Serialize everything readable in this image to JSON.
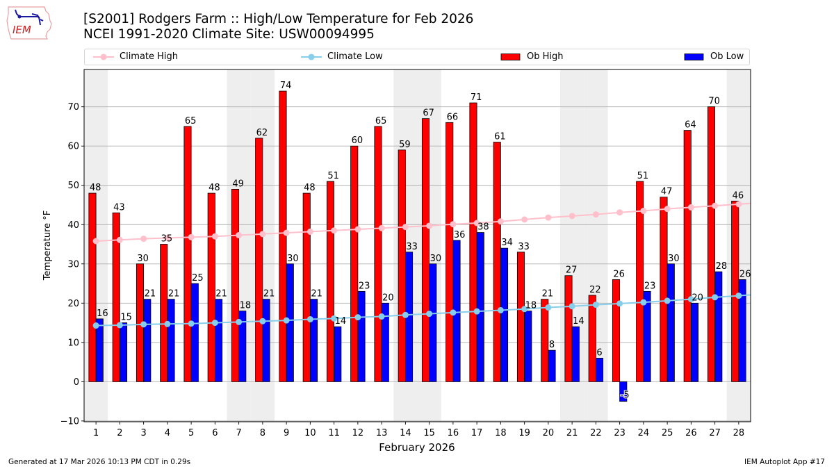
{
  "header": {
    "title_line1": "[S2001] Rodgers Farm :: High/Low Temperature for Feb 2026",
    "title_line2": "NCEI 1991-2020 Climate Site: USW00094995",
    "logo_text": "IEM"
  },
  "footer": {
    "generated": "Generated at 17 Mar 2026 10:13 PM CDT in 0.29s",
    "app": "IEM Autoplot App #17"
  },
  "colors": {
    "ob_high": "#ff0000",
    "ob_low": "#0000ff",
    "climate_high": "#ffc0cb",
    "climate_low": "#87ceeb",
    "weekend_shade": "#eeeeee",
    "grid": "#b0b0b0"
  },
  "chart_data": {
    "type": "bar",
    "title": "[S2001] Rodgers Farm :: High/Low Temperature for Feb 2026",
    "subtitle": "NCEI 1991-2020 Climate Site: USW00094995",
    "xlabel": "February 2026",
    "ylabel": "Temperature °F",
    "xlim": [
      0.5,
      28.5
    ],
    "ylim": [
      -10.2,
      79.5
    ],
    "yticks": [
      -10,
      0,
      10,
      20,
      30,
      40,
      50,
      60,
      70
    ],
    "grid": "y",
    "legend_placement": "top",
    "shaded_days": [
      1,
      7,
      8,
      14,
      15,
      21,
      22,
      28
    ],
    "x": [
      1,
      2,
      3,
      4,
      5,
      6,
      7,
      8,
      9,
      10,
      11,
      12,
      13,
      14,
      15,
      16,
      17,
      18,
      19,
      20,
      21,
      22,
      23,
      24,
      25,
      26,
      27,
      28
    ],
    "series": [
      {
        "name": "Climate High",
        "kind": "line",
        "values": [
          35.8,
          36.1,
          36.4,
          36.6,
          36.8,
          37.0,
          37.3,
          37.6,
          37.9,
          38.2,
          38.5,
          38.8,
          39.1,
          39.4,
          39.7,
          40.1,
          40.4,
          40.8,
          41.3,
          41.8,
          42.2,
          42.6,
          43.1,
          43.5,
          44.0,
          44.4,
          44.8,
          45.2
        ]
      },
      {
        "name": "Climate Low",
        "kind": "line",
        "values": [
          14.3,
          14.4,
          14.6,
          14.7,
          14.8,
          15.0,
          15.2,
          15.4,
          15.6,
          15.9,
          16.1,
          16.4,
          16.6,
          17.0,
          17.3,
          17.6,
          17.9,
          18.2,
          18.5,
          18.9,
          19.2,
          19.6,
          19.9,
          20.2,
          20.6,
          21.0,
          21.5,
          21.9
        ]
      },
      {
        "name": "Ob High",
        "kind": "bar",
        "values": [
          48,
          43,
          30,
          35,
          65,
          48,
          49,
          62,
          74,
          48,
          51,
          60,
          65,
          59,
          67,
          66,
          71,
          61,
          33,
          21,
          27,
          22,
          26,
          51,
          47,
          64,
          70,
          46
        ]
      },
      {
        "name": "Ob Low",
        "kind": "bar",
        "values": [
          16,
          15,
          21,
          21,
          25,
          21,
          18,
          21,
          30,
          21,
          14,
          23,
          20,
          33,
          30,
          36,
          38,
          34,
          18,
          8,
          14,
          6,
          -5,
          23,
          30,
          20,
          28,
          26
        ]
      }
    ]
  }
}
